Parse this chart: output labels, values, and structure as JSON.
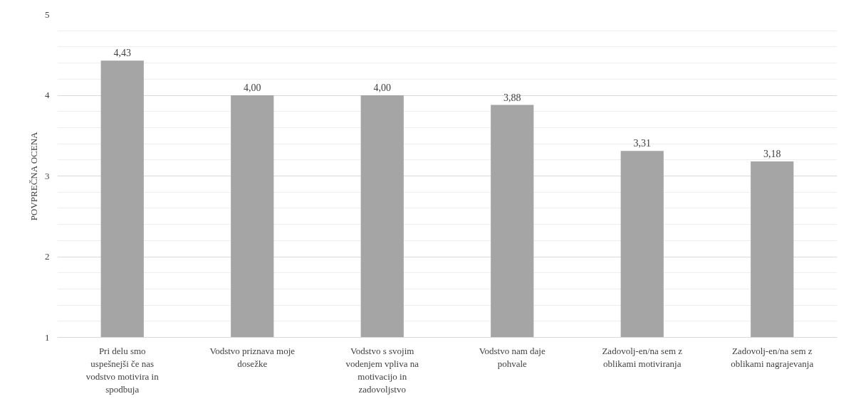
{
  "chart_data": {
    "type": "bar",
    "ylabel": "POVPREČNA OCENA",
    "categories": [
      "Pri delu smo uspešnejši če nas vodstvo motivira in spodbuja",
      "Vodstvo priznava moje dosežke",
      "Vodstvo s svojim vodenjem vpliva na motivacijo in zadovoljstvo",
      "Vodstvo nam daje pohvale",
      "Zadovolj-en/na sem z oblikami motiviranja",
      "Zadovolj-en/na sem z oblikami nagrajevanja"
    ],
    "values": [
      4.43,
      4.0,
      4.0,
      3.88,
      3.31,
      3.18
    ],
    "value_labels": [
      "4,43",
      "4,00",
      "4,00",
      "3,88",
      "3,31",
      "3,18"
    ],
    "color": "#a5a5a5",
    "ylim": [
      1,
      5
    ],
    "yticks": [
      1,
      2,
      3,
      4,
      5
    ],
    "grid": "y"
  }
}
